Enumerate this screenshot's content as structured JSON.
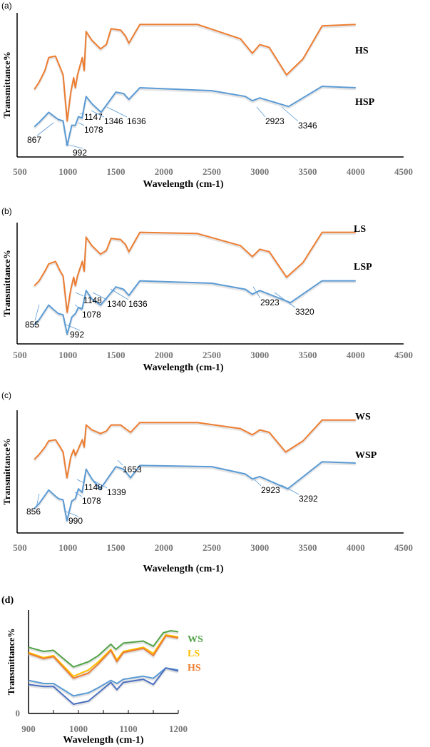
{
  "colors": {
    "orange": "#ed7d31",
    "blue": "#5b9bd5",
    "green": "#52a447",
    "yellow": "#ffc000",
    "darkblue": "#4a6fc0"
  },
  "chart_data": [
    {
      "type": "line",
      "panel_label": "(a)",
      "xlabel": "Wavelength (cm-1)",
      "ylabel": "Transmittance%",
      "xlim": [
        500,
        4500
      ],
      "ylim": [
        0,
        100
      ],
      "xticks": [
        500,
        1000,
        1500,
        2000,
        2500,
        3000,
        3500,
        4000,
        4500
      ],
      "series": [
        {
          "name": "HS",
          "color": "orange",
          "x": [
            650,
            700,
            760,
            800,
            870,
            920,
            950,
            992,
            1030,
            1060,
            1078,
            1100,
            1150,
            1170,
            1190,
            1250,
            1340,
            1400,
            1450,
            1550,
            1600,
            1636,
            1750,
            2350,
            2800,
            2923,
            3000,
            3100,
            3280,
            3450,
            3650,
            4000
          ],
          "y": [
            47,
            52,
            60,
            69,
            70,
            62,
            57,
            25,
            45,
            55,
            48,
            57,
            69,
            60,
            87,
            81,
            75,
            78,
            89,
            88,
            84,
            79,
            92,
            92,
            82,
            72,
            78,
            76,
            57,
            68,
            91,
            92
          ]
        },
        {
          "name": "HSP",
          "color": "blue",
          "x": [
            650,
            700,
            800,
            900,
            950,
            992,
            1040,
            1078,
            1110,
            1147,
            1190,
            1250,
            1346,
            1500,
            1580,
            1636,
            1750,
            2500,
            2850,
            2923,
            3000,
            3300,
            3650,
            4000
          ],
          "y": [
            21,
            24,
            31,
            26,
            25,
            8,
            22,
            22,
            28,
            27,
            42,
            37,
            31,
            45,
            44,
            40,
            48,
            46,
            42,
            39,
            41,
            35,
            49,
            48
          ]
        }
      ],
      "annotations": [
        "867",
        "992",
        "1078",
        "1147",
        "1346",
        "1636",
        "2923",
        "3346"
      ]
    },
    {
      "type": "line",
      "panel_label": "(b)",
      "xlabel": "Wavelength (cm-1)",
      "ylabel": "Transmittance%",
      "xlim": [
        500,
        4500
      ],
      "ylim": [
        0,
        100
      ],
      "xticks": [
        500,
        1000,
        1500,
        2000,
        2500,
        3000,
        3500,
        4000,
        4500
      ],
      "series": [
        {
          "name": "LS",
          "color": "orange",
          "x": [
            650,
            700,
            760,
            800,
            870,
            920,
            950,
            992,
            1030,
            1060,
            1078,
            1100,
            1150,
            1170,
            1190,
            1250,
            1340,
            1400,
            1450,
            1550,
            1600,
            1636,
            1750,
            2350,
            2800,
            2923,
            3000,
            3100,
            3280,
            3450,
            3650,
            4000
          ],
          "y": [
            48,
            52,
            60,
            66,
            68,
            60,
            56,
            26,
            45,
            55,
            48,
            56,
            68,
            60,
            88,
            81,
            74,
            77,
            87,
            86,
            82,
            76,
            92,
            91,
            81,
            72,
            78,
            76,
            55,
            67,
            92,
            92
          ]
        },
        {
          "name": "LSP",
          "color": "blue",
          "x": [
            650,
            700,
            800,
            855,
            900,
            950,
            992,
            1040,
            1078,
            1110,
            1148,
            1190,
            1250,
            1340,
            1500,
            1580,
            1636,
            1750,
            2500,
            2850,
            2923,
            3000,
            3320,
            3650,
            4000
          ],
          "y": [
            16,
            20,
            32,
            28,
            25,
            24,
            8,
            22,
            25,
            30,
            29,
            44,
            37,
            32,
            47,
            45,
            40,
            52,
            50,
            45,
            41,
            44,
            34,
            52,
            52
          ]
        }
      ],
      "annotations": [
        "855",
        "992",
        "1078",
        "1148",
        "1340",
        "1636",
        "2923",
        "3320"
      ]
    },
    {
      "type": "line",
      "panel_label": "(c)",
      "xlabel": "Wavelength (cm-1)",
      "ylabel": "Transmittance%",
      "xlim": [
        500,
        4500
      ],
      "ylim": [
        0,
        100
      ],
      "xticks": [
        500,
        1000,
        1500,
        2000,
        2500,
        3000,
        3500,
        4000,
        4500
      ],
      "series": [
        {
          "name": "WS",
          "color": "orange",
          "x": [
            650,
            700,
            760,
            800,
            870,
            920,
            950,
            990,
            1030,
            1060,
            1078,
            1100,
            1150,
            1170,
            1190,
            1250,
            1340,
            1400,
            1450,
            1550,
            1600,
            1653,
            1750,
            2350,
            2800,
            2923,
            3000,
            3100,
            3270,
            3450,
            3650,
            4000
          ],
          "y": [
            60,
            64,
            70,
            75,
            76,
            70,
            66,
            45,
            62,
            68,
            63,
            67,
            76,
            70,
            88,
            84,
            81,
            83,
            88,
            88,
            85,
            82,
            90,
            90,
            85,
            80,
            84,
            82,
            66,
            75,
            92,
            92
          ]
        },
        {
          "name": "WSP",
          "color": "blue",
          "x": [
            650,
            700,
            800,
            856,
            900,
            950,
            990,
            1040,
            1078,
            1110,
            1148,
            1190,
            1250,
            1339,
            1500,
            1580,
            1653,
            1750,
            2500,
            2850,
            2923,
            3000,
            3292,
            3650,
            4000
          ],
          "y": [
            20,
            24,
            35,
            31,
            28,
            27,
            10,
            26,
            28,
            36,
            33,
            52,
            44,
            36,
            54,
            52,
            45,
            55,
            54,
            48,
            44,
            46,
            36,
            58,
            57
          ]
        }
      ],
      "annotations": [
        "856",
        "990",
        "1078",
        "1148",
        "1339",
        "1653",
        "2923",
        "3292"
      ]
    },
    {
      "type": "line",
      "panel_label": "(d)",
      "xlabel": "Wavelength (cm-1)",
      "ylabel": "Transmittance%",
      "xlim": [
        900,
        1200
      ],
      "ylim": [
        0,
        100
      ],
      "xticks": [
        900,
        1000,
        1100,
        1200
      ],
      "yticks": [
        0
      ],
      "series": [
        {
          "name": "WS",
          "color": "green",
          "x": [
            900,
            930,
            950,
            990,
            1020,
            1040,
            1065,
            1075,
            1090,
            1130,
            1150,
            1170,
            1185,
            1200
          ],
          "y": [
            64,
            60,
            61,
            45,
            50,
            56,
            67,
            62,
            68,
            70,
            65,
            78,
            80,
            79
          ]
        },
        {
          "name": "LS",
          "color": "yellow",
          "x": [
            900,
            930,
            950,
            990,
            1020,
            1040,
            1065,
            1077,
            1090,
            1130,
            1150,
            1175,
            1200
          ],
          "y": [
            59,
            54,
            56,
            36,
            42,
            50,
            62,
            52,
            60,
            64,
            58,
            76,
            74
          ]
        },
        {
          "name": "HS",
          "color": "orange",
          "x": [
            900,
            930,
            950,
            990,
            1020,
            1040,
            1065,
            1077,
            1090,
            1130,
            1150,
            1175,
            1200
          ],
          "y": [
            58,
            53,
            55,
            34,
            39,
            48,
            61,
            50,
            59,
            63,
            56,
            75,
            73
          ]
        },
        {
          "color": "blue",
          "x": [
            900,
            930,
            950,
            990,
            1020,
            1040,
            1065,
            1077,
            1090,
            1130,
            1150,
            1175,
            1200
          ],
          "y": [
            32,
            29,
            29,
            17,
            20,
            25,
            32,
            29,
            33,
            36,
            34,
            44,
            42
          ]
        },
        {
          "color": "darkblue",
          "x": [
            900,
            930,
            950,
            990,
            1020,
            1040,
            1065,
            1077,
            1090,
            1130,
            1150,
            1175,
            1200
          ],
          "y": [
            28,
            26,
            26,
            9,
            12,
            20,
            30,
            23,
            30,
            33,
            28,
            44,
            41
          ]
        }
      ],
      "annotations": []
    }
  ]
}
